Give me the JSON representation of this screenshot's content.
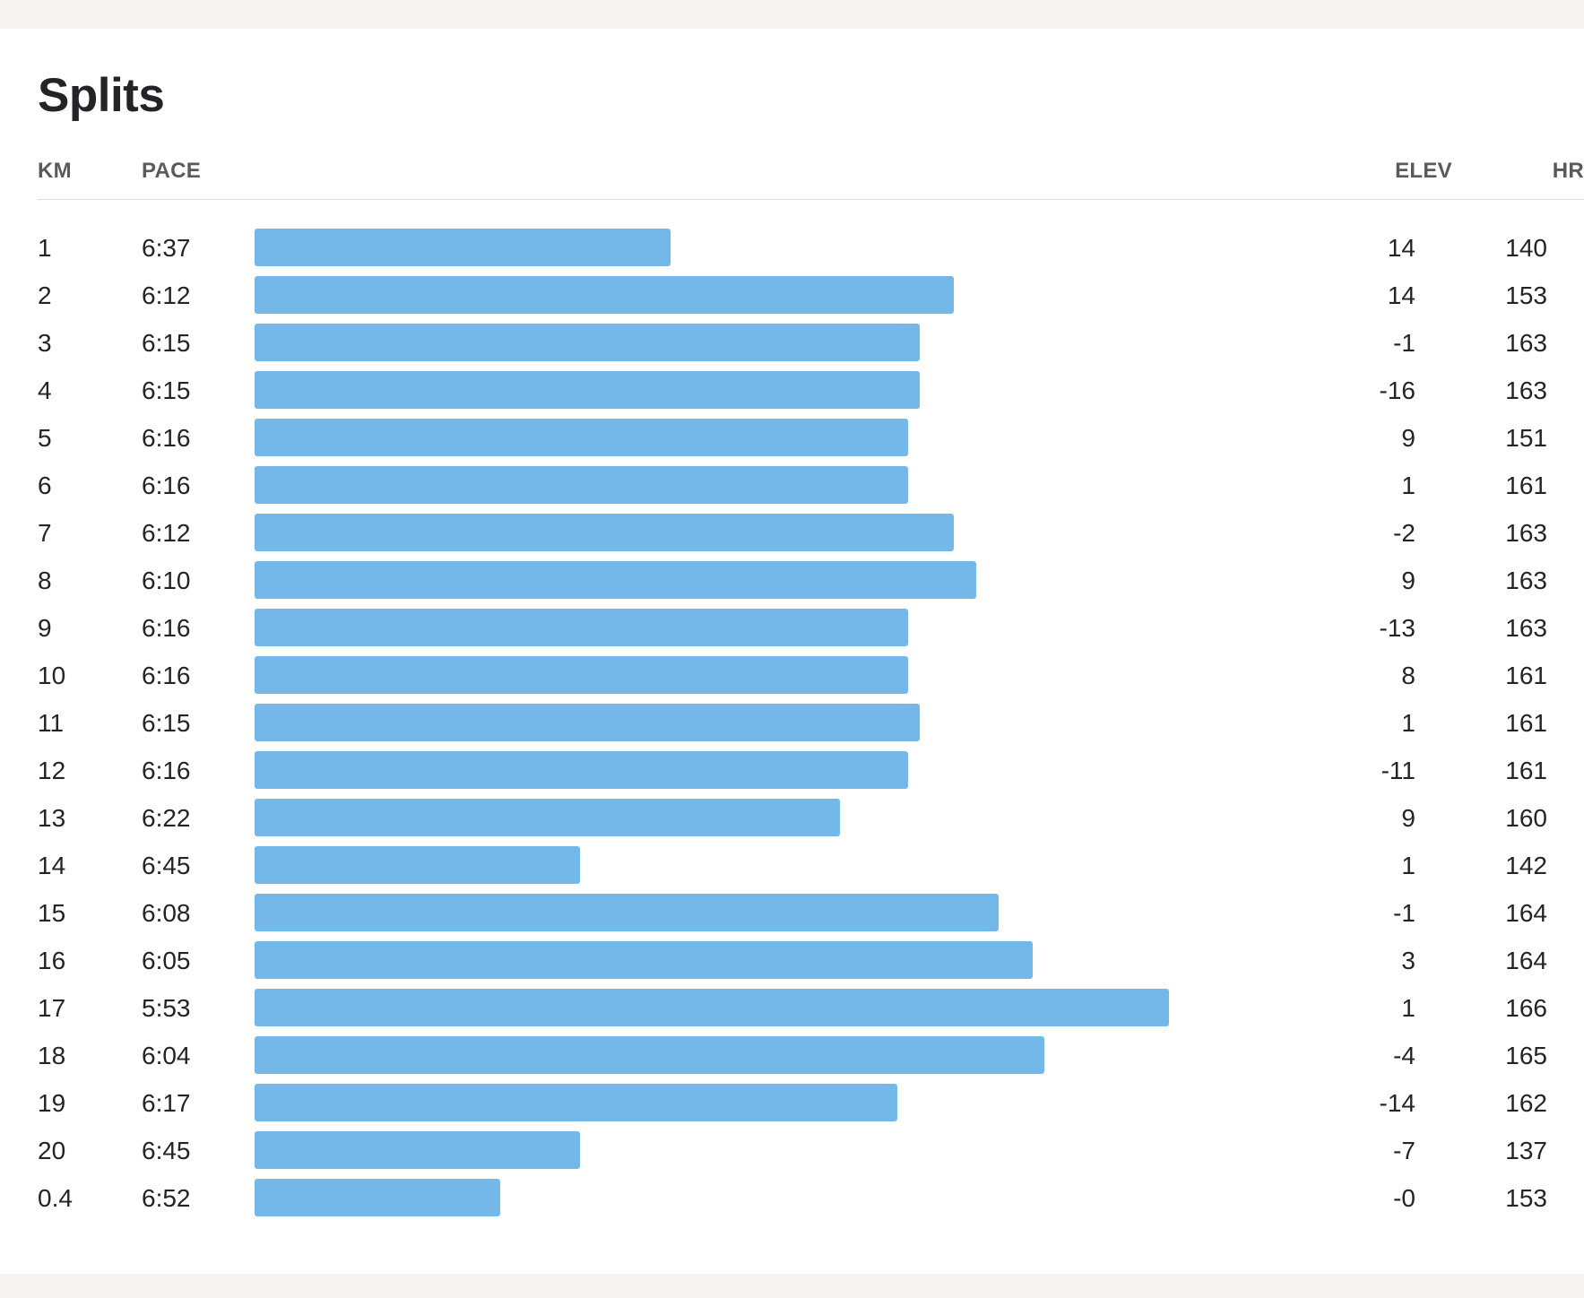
{
  "title": "Splits",
  "columns": {
    "km": "KM",
    "pace": "PACE",
    "elev": "ELEV",
    "hr": "HR"
  },
  "colors": {
    "bar": "#74b8ea"
  },
  "chart_data": {
    "type": "bar",
    "orientation": "horizontal",
    "title": "Splits",
    "bar_measure": "pace (faster = longer bar)",
    "rows": [
      {
        "km": "1",
        "pace": "6:37",
        "pace_seconds": 397,
        "elev": "14",
        "hr": "140"
      },
      {
        "km": "2",
        "pace": "6:12",
        "pace_seconds": 372,
        "elev": "14",
        "hr": "153"
      },
      {
        "km": "3",
        "pace": "6:15",
        "pace_seconds": 375,
        "elev": "-1",
        "hr": "163"
      },
      {
        "km": "4",
        "pace": "6:15",
        "pace_seconds": 375,
        "elev": "-16",
        "hr": "163"
      },
      {
        "km": "5",
        "pace": "6:16",
        "pace_seconds": 376,
        "elev": "9",
        "hr": "151"
      },
      {
        "km": "6",
        "pace": "6:16",
        "pace_seconds": 376,
        "elev": "1",
        "hr": "161"
      },
      {
        "km": "7",
        "pace": "6:12",
        "pace_seconds": 372,
        "elev": "-2",
        "hr": "163"
      },
      {
        "km": "8",
        "pace": "6:10",
        "pace_seconds": 370,
        "elev": "9",
        "hr": "163"
      },
      {
        "km": "9",
        "pace": "6:16",
        "pace_seconds": 376,
        "elev": "-13",
        "hr": "163"
      },
      {
        "km": "10",
        "pace": "6:16",
        "pace_seconds": 376,
        "elev": "8",
        "hr": "161"
      },
      {
        "km": "11",
        "pace": "6:15",
        "pace_seconds": 375,
        "elev": "1",
        "hr": "161"
      },
      {
        "km": "12",
        "pace": "6:16",
        "pace_seconds": 376,
        "elev": "-11",
        "hr": "161"
      },
      {
        "km": "13",
        "pace": "6:22",
        "pace_seconds": 382,
        "elev": "9",
        "hr": "160"
      },
      {
        "km": "14",
        "pace": "6:45",
        "pace_seconds": 405,
        "elev": "1",
        "hr": "142"
      },
      {
        "km": "15",
        "pace": "6:08",
        "pace_seconds": 368,
        "elev": "-1",
        "hr": "164"
      },
      {
        "km": "16",
        "pace": "6:05",
        "pace_seconds": 365,
        "elev": "3",
        "hr": "164"
      },
      {
        "km": "17",
        "pace": "5:53",
        "pace_seconds": 353,
        "elev": "1",
        "hr": "166"
      },
      {
        "km": "18",
        "pace": "6:04",
        "pace_seconds": 364,
        "elev": "-4",
        "hr": "165"
      },
      {
        "km": "19",
        "pace": "6:17",
        "pace_seconds": 377,
        "elev": "-14",
        "hr": "162"
      },
      {
        "km": "20",
        "pace": "6:45",
        "pace_seconds": 405,
        "elev": "-7",
        "hr": "137"
      },
      {
        "km": "0.4",
        "pace": "6:52",
        "pace_seconds": 412,
        "elev": "-0",
        "hr": "153"
      }
    ]
  }
}
